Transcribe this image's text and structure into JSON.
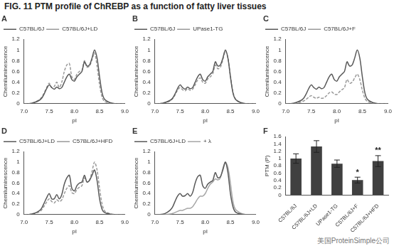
{
  "title": "FIG. 11 PTM profile of ChREBP as a function of fatty liver tissues",
  "watermark": "美国ProteinSimple公司",
  "chart_data": [
    {
      "type": "line",
      "title": "A",
      "x_label": "pI",
      "y_label": "Chemiluminescence",
      "x": [
        7.0,
        7.1,
        7.2,
        7.3,
        7.35,
        7.4,
        7.45,
        7.5,
        7.55,
        7.6,
        7.65,
        7.7,
        7.75,
        7.8,
        7.85,
        7.9,
        7.95,
        8.0,
        8.05,
        8.1,
        8.15,
        8.2,
        8.25,
        8.3,
        8.35,
        8.4,
        8.45,
        8.5,
        8.55,
        8.6,
        8.7,
        8.8,
        8.9,
        9.0
      ],
      "xlim": [
        7,
        9
      ],
      "xticks": [
        {
          "value": 7,
          "label": "7.0"
        },
        7.5,
        {
          "value": 8,
          "label": "8.0"
        },
        8.5,
        {
          "value": 9,
          "label": "9.0"
        }
      ],
      "ylim": [
        0,
        1.2
      ],
      "yticks": [
        0,
        0.2,
        0.4,
        0.6,
        0.8,
        1,
        1.2
      ],
      "grid": false,
      "legend": "upper left",
      "series": [
        {
          "name": "C57BL/6J",
          "color": "#595959",
          "line_style": "solid",
          "values": [
            0,
            0,
            0.02,
            0.06,
            0.1,
            0.18,
            0.28,
            0.35,
            0.3,
            0.27,
            0.31,
            0.28,
            0.3,
            0.4,
            0.5,
            0.55,
            0.45,
            0.42,
            0.5,
            0.55,
            0.6,
            0.78,
            0.7,
            0.72,
            0.85,
            1.0,
            0.85,
            0.5,
            0.2,
            0.08,
            0.02,
            0,
            0,
            0
          ]
        },
        {
          "name": "C57BL/6J+LD",
          "color": "#9a9a9a",
          "line_style": "dashed",
          "values": [
            0,
            0,
            0.02,
            0.07,
            0.12,
            0.2,
            0.3,
            0.38,
            0.3,
            0.32,
            0.4,
            0.3,
            0.4,
            0.6,
            0.72,
            0.75,
            0.5,
            0.45,
            0.55,
            0.6,
            0.62,
            0.8,
            0.68,
            0.7,
            0.82,
            0.95,
            0.7,
            0.35,
            0.12,
            0.04,
            0.01,
            0,
            0,
            0
          ]
        }
      ]
    },
    {
      "type": "line",
      "title": "B",
      "x_label": "pI",
      "y_label": "Chemiluminescence",
      "x": [
        7.0,
        7.1,
        7.2,
        7.3,
        7.35,
        7.4,
        7.45,
        7.5,
        7.55,
        7.6,
        7.65,
        7.7,
        7.75,
        7.8,
        7.85,
        7.9,
        7.95,
        8.0,
        8.05,
        8.1,
        8.15,
        8.2,
        8.25,
        8.3,
        8.35,
        8.4,
        8.45,
        8.5,
        8.55,
        8.6,
        8.7,
        8.8,
        8.9,
        9.0
      ],
      "xlim": [
        7,
        9
      ],
      "xticks": [
        {
          "value": 7,
          "label": "7.0"
        },
        7.5,
        {
          "value": 8,
          "label": "8.0"
        },
        8.5,
        {
          "value": 9,
          "label": "9.0"
        }
      ],
      "ylim": [
        0,
        1.2
      ],
      "yticks": [
        0,
        0.2,
        0.4,
        0.6,
        0.8,
        1,
        1.2
      ],
      "grid": false,
      "legend": "upper left",
      "series": [
        {
          "name": "C57BL/6J",
          "color": "#595959",
          "line_style": "solid",
          "values": [
            0,
            0,
            0.02,
            0.06,
            0.1,
            0.18,
            0.28,
            0.35,
            0.3,
            0.27,
            0.31,
            0.28,
            0.3,
            0.4,
            0.5,
            0.55,
            0.45,
            0.42,
            0.5,
            0.55,
            0.6,
            0.78,
            0.7,
            0.72,
            0.85,
            1.0,
            0.85,
            0.5,
            0.2,
            0.08,
            0.02,
            0,
            0,
            0
          ]
        },
        {
          "name": "UPase1-TG",
          "color": "#9a9a9a",
          "line_style": "dashed",
          "values": [
            0,
            0,
            0.02,
            0.05,
            0.09,
            0.16,
            0.25,
            0.3,
            0.26,
            0.24,
            0.28,
            0.25,
            0.27,
            0.35,
            0.44,
            0.48,
            0.4,
            0.38,
            0.46,
            0.5,
            0.56,
            0.72,
            0.65,
            0.68,
            0.82,
            0.98,
            0.85,
            0.52,
            0.22,
            0.09,
            0.02,
            0,
            0,
            0
          ]
        }
      ]
    },
    {
      "type": "line",
      "title": "C",
      "x_label": "pI",
      "y_label": "Chemiluminescence",
      "x": [
        7.0,
        7.1,
        7.2,
        7.3,
        7.35,
        7.4,
        7.45,
        7.5,
        7.55,
        7.6,
        7.65,
        7.7,
        7.75,
        7.8,
        7.85,
        7.9,
        7.95,
        8.0,
        8.05,
        8.1,
        8.15,
        8.2,
        8.25,
        8.3,
        8.35,
        8.4,
        8.45,
        8.5,
        8.55,
        8.6,
        8.7,
        8.8,
        8.9,
        9.0
      ],
      "xlim": [
        7,
        9
      ],
      "xticks": [
        {
          "value": 7,
          "label": "7.0"
        },
        7.5,
        {
          "value": 8,
          "label": "8.0"
        },
        8.5,
        {
          "value": 9,
          "label": "9.0"
        }
      ],
      "ylim": [
        0,
        1.2
      ],
      "yticks": [
        0,
        0.2,
        0.4,
        0.6,
        0.8,
        1,
        1.2
      ],
      "grid": false,
      "legend": "upper left",
      "series": [
        {
          "name": "C57BL/6J",
          "color": "#595959",
          "line_style": "solid",
          "values": [
            0,
            0,
            0.02,
            0.06,
            0.1,
            0.18,
            0.28,
            0.35,
            0.3,
            0.27,
            0.31,
            0.28,
            0.3,
            0.4,
            0.5,
            0.55,
            0.45,
            0.42,
            0.5,
            0.55,
            0.6,
            0.78,
            0.7,
            0.72,
            0.85,
            1.0,
            0.85,
            0.5,
            0.2,
            0.08,
            0.02,
            0,
            0,
            0
          ]
        },
        {
          "name": "C57BL/6J+F",
          "color": "#9a9a9a",
          "line_style": "dashed",
          "values": [
            0,
            0,
            0.01,
            0.03,
            0.05,
            0.08,
            0.12,
            0.15,
            0.12,
            0.1,
            0.12,
            0.1,
            0.11,
            0.15,
            0.2,
            0.22,
            0.18,
            0.17,
            0.22,
            0.26,
            0.3,
            0.45,
            0.38,
            0.4,
            0.48,
            0.55,
            0.45,
            0.25,
            0.1,
            0.04,
            0.01,
            0,
            0,
            0
          ]
        }
      ]
    },
    {
      "type": "line",
      "title": "D",
      "x_label": "pI",
      "y_label": "Chemiluminescence",
      "x": [
        7.0,
        7.1,
        7.2,
        7.3,
        7.35,
        7.4,
        7.45,
        7.5,
        7.55,
        7.6,
        7.65,
        7.7,
        7.75,
        7.8,
        7.85,
        7.9,
        7.95,
        8.0,
        8.05,
        8.1,
        8.15,
        8.2,
        8.25,
        8.3,
        8.35,
        8.4,
        8.45,
        8.5,
        8.55,
        8.6,
        8.7,
        8.8,
        8.9,
        9.0
      ],
      "xlim": [
        7,
        9
      ],
      "xticks": [
        {
          "value": 7,
          "label": "7.0"
        },
        7.5,
        {
          "value": 8,
          "label": "8.0"
        },
        8.5,
        {
          "value": 9,
          "label": "9.0"
        }
      ],
      "ylim": [
        0,
        1.2
      ],
      "yticks": [
        0,
        0.2,
        0.4,
        0.6,
        0.8,
        1,
        1.2
      ],
      "grid": false,
      "legend": "upper left",
      "series": [
        {
          "name": "C57BL/6J+LD",
          "color": "#595959",
          "line_style": "solid",
          "values": [
            0,
            0,
            0.02,
            0.07,
            0.12,
            0.22,
            0.32,
            0.4,
            0.3,
            0.3,
            0.38,
            0.3,
            0.38,
            0.58,
            0.7,
            0.75,
            0.5,
            0.45,
            0.55,
            0.6,
            0.62,
            0.75,
            0.62,
            0.65,
            0.75,
            0.85,
            0.65,
            0.3,
            0.1,
            0.04,
            0.01,
            0,
            0,
            0
          ]
        },
        {
          "name": "C57BL/6J+HFD",
          "color": "#9a9a9a",
          "line_style": "dashed",
          "values": [
            0,
            0,
            0.02,
            0.05,
            0.09,
            0.16,
            0.24,
            0.3,
            0.25,
            0.22,
            0.28,
            0.25,
            0.28,
            0.4,
            0.5,
            0.55,
            0.42,
            0.4,
            0.48,
            0.52,
            0.55,
            0.7,
            0.62,
            0.66,
            0.82,
            1.0,
            0.85,
            0.5,
            0.2,
            0.07,
            0.02,
            0,
            0,
            0
          ]
        }
      ]
    },
    {
      "type": "line",
      "title": "E",
      "x_label": "pI",
      "y_label": "Chemiluminescence",
      "x": [
        7.0,
        7.1,
        7.2,
        7.3,
        7.35,
        7.4,
        7.45,
        7.5,
        7.55,
        7.6,
        7.65,
        7.7,
        7.75,
        7.8,
        7.85,
        7.9,
        7.95,
        8.0,
        8.05,
        8.1,
        8.15,
        8.2,
        8.25,
        8.3,
        8.35,
        8.4,
        8.45,
        8.5,
        8.55,
        8.6,
        8.7,
        8.8,
        8.9,
        9.0
      ],
      "xlim": [
        7,
        9
      ],
      "xticks": [
        {
          "value": 7,
          "label": "7.0"
        },
        7.5,
        {
          "value": 8,
          "label": "8.0"
        },
        8.5,
        {
          "value": 9,
          "label": "9.0"
        }
      ],
      "ylim": [
        0,
        1.2
      ],
      "yticks": [
        0,
        0.2,
        0.4,
        0.6,
        0.8,
        1,
        1.2
      ],
      "grid": false,
      "legend": "upper left",
      "series": [
        {
          "name": "C57BL/6J+LD",
          "color": "#595959",
          "line_style": "solid",
          "values": [
            0,
            0,
            0.02,
            0.08,
            0.14,
            0.25,
            0.35,
            0.4,
            0.35,
            0.36,
            0.4,
            0.35,
            0.42,
            0.6,
            0.72,
            0.75,
            0.55,
            0.5,
            0.58,
            0.62,
            0.65,
            0.8,
            0.7,
            0.72,
            0.85,
            1.0,
            0.8,
            0.4,
            0.15,
            0.05,
            0.01,
            0,
            0,
            0
          ]
        },
        {
          "name": "+ λ",
          "color": "#a6a6a6",
          "line_style": "solid",
          "values": [
            0,
            0,
            0,
            0.01,
            0.02,
            0.04,
            0.06,
            0.08,
            0.08,
            0.1,
            0.12,
            0.12,
            0.15,
            0.22,
            0.3,
            0.35,
            0.35,
            0.4,
            0.5,
            0.58,
            0.62,
            0.68,
            0.66,
            0.7,
            0.88,
            1.0,
            0.9,
            0.6,
            0.25,
            0.1,
            0.03,
            0,
            0,
            0
          ]
        }
      ]
    },
    {
      "type": "bar",
      "title": "F",
      "y_label": "PTM (P)",
      "categories": [
        "C57BL/6J",
        "C57BL/6J+LD",
        "UPase1-TG",
        "C57BL/6J+F",
        "C57BL/6J+HFD"
      ],
      "values": [
        1.0,
        1.33,
        0.86,
        0.41,
        0.93
      ],
      "errors": [
        0.13,
        0.16,
        0.1,
        0.08,
        0.15
      ],
      "color": "#404040",
      "ylim": [
        0,
        1.6
      ],
      "yticks": [
        0,
        0.2,
        0.4,
        0.6,
        0.8,
        1,
        1.2,
        1.4,
        1.6
      ],
      "grid": false,
      "annotations": [
        {
          "category": "C57BL/6J+F",
          "text": "*"
        },
        {
          "category": "C57BL/6J+HFD",
          "text": "**"
        }
      ]
    }
  ]
}
